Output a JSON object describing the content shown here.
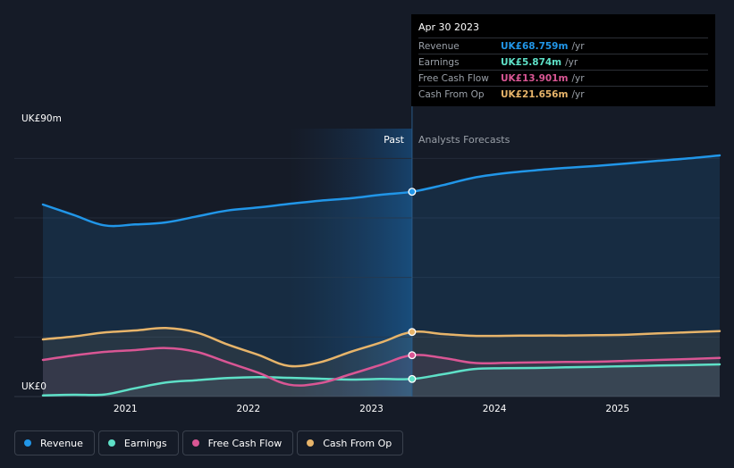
{
  "tooltip": {
    "date": "Apr 30 2023",
    "rows": [
      {
        "label": "Revenue",
        "value": "UK£68.759m",
        "unit": "/yr",
        "color": "#2196e8"
      },
      {
        "label": "Earnings",
        "value": "UK£5.874m",
        "unit": "/yr",
        "color": "#5ee0c7"
      },
      {
        "label": "Free Cash Flow",
        "value": "UK£13.901m",
        "unit": "/yr",
        "color": "#d95694"
      },
      {
        "label": "Cash From Op",
        "value": "UK£21.656m",
        "unit": "/yr",
        "color": "#e7b46a"
      }
    ]
  },
  "legend": [
    {
      "label": "Revenue",
      "color": "#2196e8"
    },
    {
      "label": "Earnings",
      "color": "#5ee0c7"
    },
    {
      "label": "Free Cash Flow",
      "color": "#d95694"
    },
    {
      "label": "Cash From Op",
      "color": "#e7b46a"
    }
  ],
  "chart_data": {
    "type": "line",
    "title": "",
    "y_top_label": "UK£90m",
    "y_bottom_label": "UK£0",
    "ylim": [
      0,
      90
    ],
    "xlim": [
      2020.33,
      2025.83
    ],
    "x_ticks": [
      2021,
      2022,
      2023,
      2024,
      2025
    ],
    "x_tick_labels": [
      "2021",
      "2022",
      "2023",
      "2024",
      "2025"
    ],
    "past_label": "Past",
    "forecast_label": "Analysts Forecasts",
    "divider_x": 2023.33,
    "highlight_start_x": 2022.33,
    "series": [
      {
        "name": "Revenue",
        "color": "#2196e8",
        "points": [
          [
            2020.33,
            64.5
          ],
          [
            2020.58,
            61
          ],
          [
            2020.83,
            57.5
          ],
          [
            2021.08,
            57.8
          ],
          [
            2021.33,
            58.5
          ],
          [
            2021.58,
            60.5
          ],
          [
            2021.83,
            62.5
          ],
          [
            2022.08,
            63.5
          ],
          [
            2022.33,
            64.7
          ],
          [
            2022.58,
            65.8
          ],
          [
            2022.83,
            66.6
          ],
          [
            2023.08,
            67.8
          ],
          [
            2023.33,
            68.8
          ],
          [
            2023.58,
            71
          ],
          [
            2023.83,
            73.5
          ],
          [
            2024.08,
            75
          ],
          [
            2024.33,
            76
          ],
          [
            2024.58,
            76.8
          ],
          [
            2024.83,
            77.5
          ],
          [
            2025.08,
            78.3
          ],
          [
            2025.33,
            79.2
          ],
          [
            2025.58,
            80
          ],
          [
            2025.83,
            81
          ]
        ]
      },
      {
        "name": "Earnings",
        "color": "#5ee0c7",
        "points": [
          [
            2020.33,
            0.4
          ],
          [
            2020.58,
            0.6
          ],
          [
            2020.83,
            0.7
          ],
          [
            2021.08,
            2.8
          ],
          [
            2021.33,
            4.7
          ],
          [
            2021.58,
            5.5
          ],
          [
            2021.83,
            6.2
          ],
          [
            2022.08,
            6.5
          ],
          [
            2022.33,
            6.3
          ],
          [
            2022.58,
            6
          ],
          [
            2022.83,
            5.7
          ],
          [
            2023.08,
            5.9
          ],
          [
            2023.33,
            5.9
          ],
          [
            2023.58,
            7.5
          ],
          [
            2023.83,
            9.2
          ],
          [
            2024.08,
            9.5
          ],
          [
            2024.33,
            9.6
          ],
          [
            2024.58,
            9.8
          ],
          [
            2024.83,
            10
          ],
          [
            2025.08,
            10.2
          ],
          [
            2025.33,
            10.4
          ],
          [
            2025.58,
            10.6
          ],
          [
            2025.83,
            10.8
          ]
        ]
      },
      {
        "name": "Free Cash Flow",
        "color": "#d95694",
        "points": [
          [
            2020.33,
            12.3
          ],
          [
            2020.58,
            13.8
          ],
          [
            2020.83,
            15
          ],
          [
            2021.08,
            15.6
          ],
          [
            2021.33,
            16.3
          ],
          [
            2021.58,
            15
          ],
          [
            2021.83,
            11.5
          ],
          [
            2022.08,
            8
          ],
          [
            2022.33,
            4
          ],
          [
            2022.58,
            4.5
          ],
          [
            2022.83,
            7.5
          ],
          [
            2023.08,
            10.7
          ],
          [
            2023.33,
            13.9
          ],
          [
            2023.58,
            13
          ],
          [
            2023.83,
            11.3
          ],
          [
            2024.08,
            11.3
          ],
          [
            2024.33,
            11.5
          ],
          [
            2024.58,
            11.6
          ],
          [
            2024.83,
            11.7
          ],
          [
            2025.08,
            12
          ],
          [
            2025.33,
            12.3
          ],
          [
            2025.58,
            12.6
          ],
          [
            2025.83,
            13
          ]
        ]
      },
      {
        "name": "Cash From Op",
        "color": "#e7b46a",
        "points": [
          [
            2020.33,
            19.2
          ],
          [
            2020.58,
            20.2
          ],
          [
            2020.83,
            21.5
          ],
          [
            2021.08,
            22.2
          ],
          [
            2021.33,
            23
          ],
          [
            2021.58,
            21.5
          ],
          [
            2021.83,
            17.5
          ],
          [
            2022.08,
            14
          ],
          [
            2022.33,
            10.3
          ],
          [
            2022.58,
            11.5
          ],
          [
            2022.83,
            15
          ],
          [
            2023.08,
            18.2
          ],
          [
            2023.33,
            21.7
          ],
          [
            2023.58,
            21
          ],
          [
            2023.83,
            20.4
          ],
          [
            2024.08,
            20.4
          ],
          [
            2024.33,
            20.5
          ],
          [
            2024.58,
            20.5
          ],
          [
            2024.83,
            20.6
          ],
          [
            2025.08,
            20.8
          ],
          [
            2025.33,
            21.2
          ],
          [
            2025.58,
            21.6
          ],
          [
            2025.83,
            22
          ]
        ]
      }
    ]
  }
}
